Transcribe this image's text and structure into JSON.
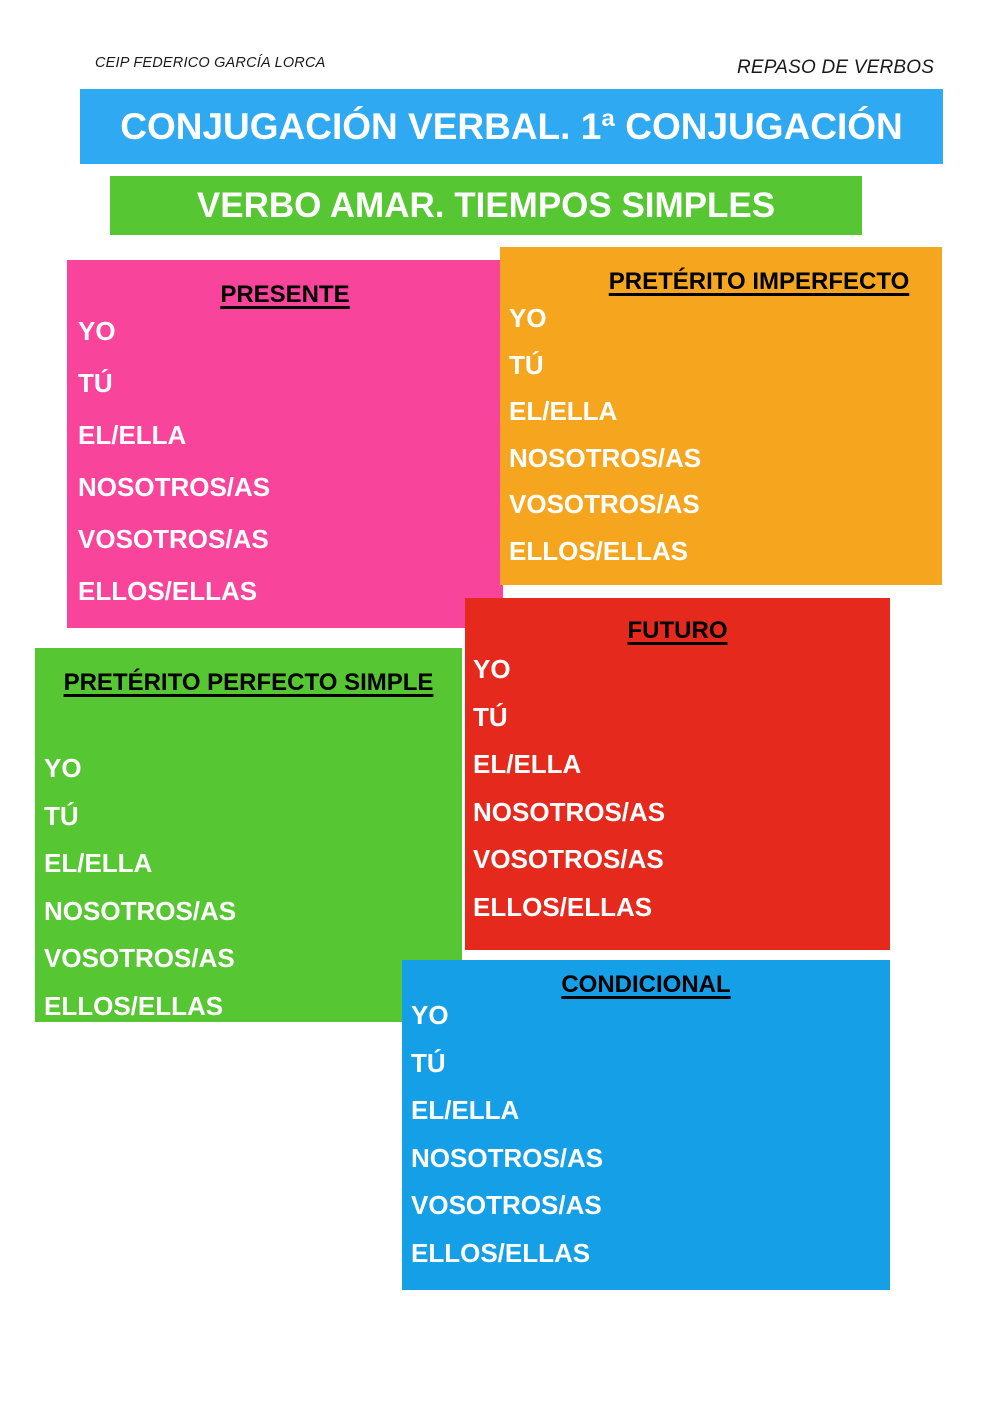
{
  "header": {
    "school": "CEIP FEDERICO GARCÍA LORCA",
    "topic": "REPASO DE VERBOS"
  },
  "banners": {
    "title": "CONJUGACIÓN VERBAL. 1ª CONJUGACIÓN",
    "title_bg": "#2FA9F1",
    "subtitle": "VERBO AMAR. TIEMPOS SIMPLES",
    "subtitle_bg": "#56C632"
  },
  "pronouns": [
    "YO",
    "TÚ",
    "EL/ELLA",
    "NOSOTROS/AS",
    "VOSOTROS/AS",
    "ELLOS/ELLAS"
  ],
  "tenses": [
    {
      "title": "PRESENTE",
      "color": "#F9449C"
    },
    {
      "title": "PRETÉRITO IMPERFECTO",
      "color": "#F6A61E"
    },
    {
      "title": "PRETÉRITO PERFECTO SIMPLE",
      "color": "#56C632"
    },
    {
      "title": "FUTURO",
      "color": "#E5291C"
    },
    {
      "title": "CONDICIONAL",
      "color": "#159FE7"
    }
  ],
  "text_colors": {
    "tense_title_ink": "#000000",
    "pronoun_ink": "#FFFFFF"
  }
}
